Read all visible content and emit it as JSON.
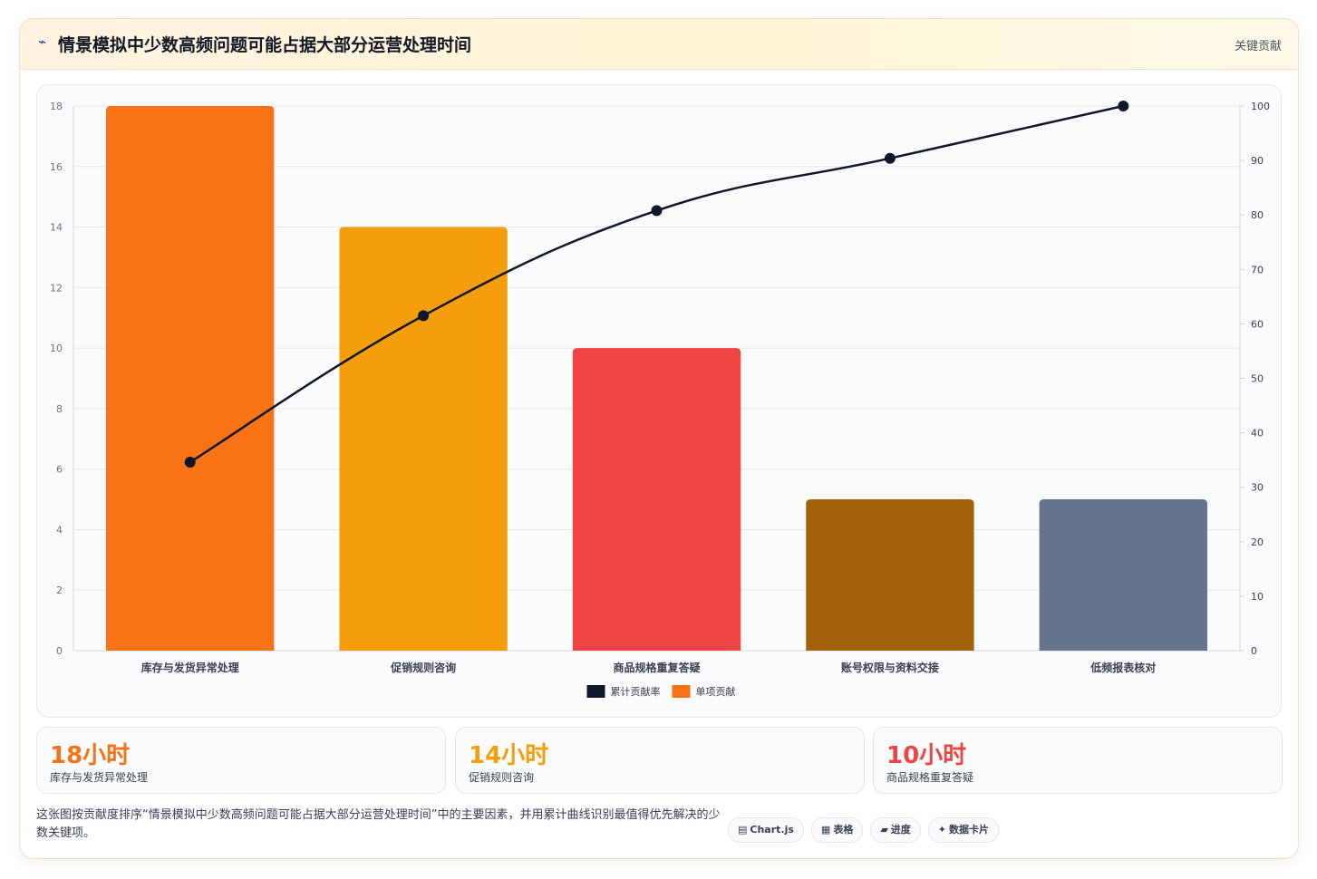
{
  "header": {
    "icon": "spark-icon",
    "title": "情景模拟中少数高频问题可能占据大部分运营处理时间",
    "badge": "关键贡献"
  },
  "chart_data": {
    "type": "bar",
    "categories": [
      "库存与发货异常处理",
      "促销规则咨询",
      "商品规格重复答疑",
      "账号权限与资料交接",
      "低频报表核对"
    ],
    "series": [
      {
        "name": "单项贡献",
        "type": "bar",
        "axis": "left",
        "values": [
          18,
          14,
          10,
          5,
          5
        ],
        "colors": [
          "#f97316",
          "#f59e0b",
          "#ef4444",
          "#a16207",
          "#64748b"
        ]
      },
      {
        "name": "累计贡献率",
        "type": "line",
        "axis": "right",
        "values": [
          34.6,
          61.5,
          80.8,
          90.4,
          100
        ],
        "color": "#0f172a"
      }
    ],
    "ylim_left": [
      0,
      18
    ],
    "yticks_left": [
      0,
      2,
      4,
      6,
      8,
      10,
      12,
      14,
      16,
      18
    ],
    "ylim_right": [
      0,
      100
    ],
    "yticks_right": [
      0,
      10,
      20,
      30,
      40,
      50,
      60,
      70,
      80,
      90,
      100
    ],
    "legend": [
      "累计贡献率",
      "单项贡献"
    ],
    "legend_position": "bottom",
    "grid": true
  },
  "kpis": [
    {
      "value": "18小时",
      "label": "库存与发货异常处理",
      "color": "#f97316"
    },
    {
      "value": "14小时",
      "label": "促销规则咨询",
      "color": "#f59e0b"
    },
    {
      "value": "10小时",
      "label": "商品规格重复答疑",
      "color": "#ef4444"
    }
  ],
  "footer": {
    "description": "这张图按贡献度排序“情景模拟中少数高频问题可能占据大部分运营处理时间”中的主要因素，并用累计曲线识别最值得优先解决的少数关键项。"
  },
  "tags": [
    {
      "icon": "chart-icon",
      "glyph": "▤",
      "label": "Chart.js"
    },
    {
      "icon": "table-icon",
      "glyph": "▦",
      "label": "表格"
    },
    {
      "icon": "progress-icon",
      "glyph": "▰",
      "label": "进度"
    },
    {
      "icon": "card-icon",
      "glyph": "✦",
      "label": "数据卡片"
    }
  ]
}
